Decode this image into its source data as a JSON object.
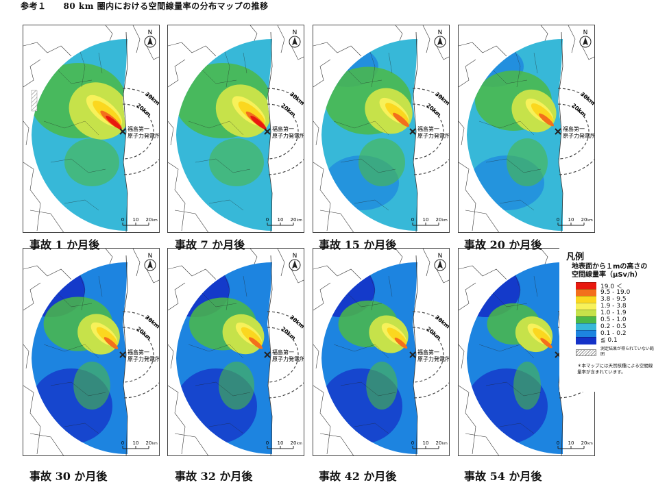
{
  "title": "参考１　　80 km 圏内における空間線量率の分布マップの推移",
  "panels": [
    {
      "caption_prefix": "事故 ",
      "months": "1",
      "caption_suffix": " か月後",
      "north": "N",
      "ring_30": "30km",
      "ring_20": "20km",
      "plant_label_1": "福島第一",
      "plant_label_2": "原子力発電所",
      "scale": [
        "0",
        "10",
        "20",
        "km"
      ],
      "intensity": 1.0,
      "hatched": true
    },
    {
      "caption_prefix": "事故 ",
      "months": "7",
      "caption_suffix": " か月後",
      "north": "N",
      "ring_30": "30km",
      "ring_20": "20km",
      "plant_label_1": "福島第一",
      "plant_label_2": "原子力発電所",
      "scale": [
        "0",
        "10",
        "20",
        "km"
      ],
      "intensity": 0.85,
      "hatched": false
    },
    {
      "caption_prefix": "事故 ",
      "months": "15",
      "caption_suffix": " か月後",
      "north": "N",
      "ring_30": "30km",
      "ring_20": "20km",
      "plant_label_1": "福島第一",
      "plant_label_2": "原子力発電所",
      "scale": [
        "0",
        "10",
        "20",
        "km"
      ],
      "intensity": 0.6,
      "hatched": false
    },
    {
      "caption_prefix": "事故 ",
      "months": "20",
      "caption_suffix": " か月後",
      "north": "N",
      "ring_30": "30km",
      "ring_20": "20km",
      "plant_label_1": "福島第一",
      "plant_label_2": "原子力発電所",
      "scale": [
        "0",
        "10",
        "20",
        "km"
      ],
      "intensity": 0.5,
      "hatched": false
    },
    {
      "caption_prefix": "事故 ",
      "months": "30",
      "caption_suffix": " か月後",
      "north": "N",
      "ring_30": "30km",
      "ring_20": "20km",
      "plant_label_1": "福島第一",
      "plant_label_2": "原子力発電所",
      "scale": [
        "0",
        "10",
        "20",
        "km"
      ],
      "intensity": 0.42,
      "hatched": false
    },
    {
      "caption_prefix": "事故 ",
      "months": "32",
      "caption_suffix": " か月後",
      "north": "N",
      "ring_30": "30km",
      "ring_20": "20km",
      "plant_label_1": "福島第一",
      "plant_label_2": "原子力発電所",
      "scale": [
        "0",
        "10",
        "20",
        "km"
      ],
      "intensity": 0.4,
      "hatched": false
    },
    {
      "caption_prefix": "事故 ",
      "months": "42",
      "caption_suffix": " か月後",
      "north": "N",
      "ring_30": "30km",
      "ring_20": "20km",
      "plant_label_1": "福島第一",
      "plant_label_2": "原子力発電所",
      "scale": [
        "0",
        "10",
        "20",
        "km"
      ],
      "intensity": 0.32,
      "hatched": false
    },
    {
      "caption_prefix": "事故 ",
      "months": "54",
      "caption_suffix": " か月後",
      "north": "N",
      "ring_30": "",
      "ring_20": "",
      "plant_label_1": "",
      "plant_label_2": "",
      "scale": [
        "0",
        "10",
        "20",
        "km"
      ],
      "intensity": 0.25,
      "hatched": false
    }
  ],
  "legend": {
    "title": "凡例",
    "subtitle_1": "地表面から１mの高さの",
    "subtitle_2": "空間線量率（μSv/h）",
    "items": [
      {
        "label": "19.0 ＜",
        "color": "#e8190f"
      },
      {
        "label": "9.5 - 19.0",
        "color": "#f36f1c"
      },
      {
        "label": "3.8 - 9.5",
        "color": "#fbd71f"
      },
      {
        "label": "1.9 - 3.8",
        "color": "#f7f15a"
      },
      {
        "label": "1.0 - 1.9",
        "color": "#c6e24a"
      },
      {
        "label": "0.5 - 1.0",
        "color": "#4bb848"
      },
      {
        "label": "0.2 - 0.5",
        "color": "#37b8d8"
      },
      {
        "label": "0.1 - 0.2",
        "color": "#1d84e0"
      },
      {
        "label": "≦ 0.1",
        "color": "#1432c8"
      }
    ],
    "hatch_label": "測定結果が得られていない範囲",
    "note": "＊本マップには天然核種による空間線量率が含まれています。"
  },
  "colors": {
    "very_low": "#1432c8",
    "low": "#1d84e0",
    "low_mid": "#37b8d8",
    "mid": "#4bb848",
    "mid_high": "#c6e24a",
    "high": "#f7f15a",
    "very_high": "#fbd71f",
    "severe": "#f36f1c",
    "extreme": "#e8190f"
  }
}
